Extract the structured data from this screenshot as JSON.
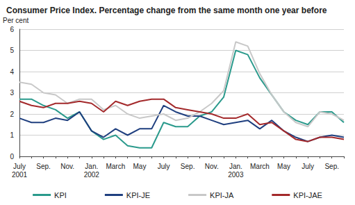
{
  "chart_data": {
    "type": "line",
    "title": "Consumer Price Index. Percentage change from the same month one year before",
    "y_label": "Per cent",
    "categories": [
      "July\n2001",
      null,
      "Sep.",
      null,
      "Nov.",
      null,
      "Jan.\n2002",
      null,
      "March",
      null,
      "May",
      null,
      "July",
      null,
      "Sep.",
      null,
      "Nov.",
      null,
      "Jan.\n2003",
      null,
      "March",
      null,
      "May",
      null,
      "July",
      null,
      "Sep.",
      null
    ],
    "series": [
      {
        "name": "KPI",
        "color": "#2a9a8c",
        "values": [
          2.7,
          2.7,
          2.4,
          2.2,
          1.8,
          2.1,
          1.2,
          0.8,
          1.0,
          0.5,
          0.4,
          0.4,
          1.6,
          1.4,
          1.4,
          1.9,
          2.1,
          2.8,
          5.0,
          4.8,
          3.7,
          2.9,
          2.1,
          1.7,
          1.5,
          2.1,
          2.1,
          1.6
        ]
      },
      {
        "name": "KPI-JE",
        "color": "#1f3f7f",
        "values": [
          1.8,
          1.6,
          1.6,
          1.8,
          1.7,
          2.1,
          1.2,
          0.9,
          1.3,
          1.0,
          1.3,
          1.3,
          2.4,
          2.1,
          1.9,
          1.9,
          1.7,
          1.5,
          1.6,
          1.7,
          1.3,
          1.7,
          1.2,
          0.9,
          0.7,
          0.9,
          1.0,
          0.9
        ]
      },
      {
        "name": "KPI-JA",
        "color": "#c8c8c8",
        "values": [
          3.5,
          3.4,
          3.0,
          2.9,
          2.5,
          2.7,
          2.7,
          2.2,
          2.4,
          2.0,
          1.8,
          1.9,
          2.0,
          1.7,
          1.8,
          2.1,
          2.5,
          3.1,
          5.4,
          5.2,
          3.9,
          2.9,
          2.1,
          1.6,
          1.4,
          2.1,
          2.0,
          1.7
        ]
      },
      {
        "name": "KPI-JAE",
        "color": "#a3292b",
        "values": [
          2.6,
          2.4,
          2.3,
          2.5,
          2.5,
          2.6,
          2.5,
          2.1,
          2.6,
          2.4,
          2.6,
          2.7,
          2.7,
          2.3,
          2.2,
          2.1,
          2.0,
          1.8,
          1.8,
          2.0,
          1.5,
          1.6,
          1.2,
          0.8,
          0.7,
          0.9,
          0.9,
          0.8
        ]
      }
    ],
    "ylim": [
      0,
      6
    ],
    "yticks": [
      0,
      1,
      2,
      3,
      4,
      5,
      6
    ],
    "grid": true,
    "legend": "bottom"
  }
}
